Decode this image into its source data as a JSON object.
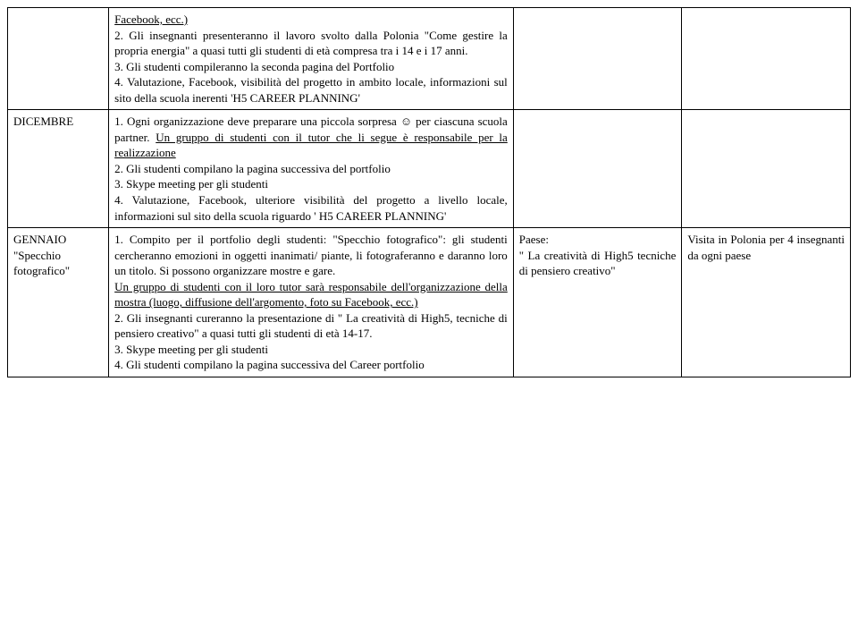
{
  "rows": [
    {
      "col1": "",
      "col2_html": "<p class='just'><span class='u'>Facebook, ecc.)</span></p><p class='just'>2. Gli insegnanti presenteranno il lavoro svolto dalla Polonia \"Come gestire la propria energia\" a quasi tutti gli studenti di età compresa tra i 14 e i 17 anni.</p><p class='just'>3. Gli studenti compileranno la seconda pagina del Portfolio</p><p class='just'>4. Valutazione, Facebook, visibilità del progetto in ambito locale, informazioni sul sito della scuola inerenti 'H5 CAREER PLANNING'</p>",
      "col3": "",
      "col4": ""
    },
    {
      "col1": "DICEMBRE",
      "col2_html": "<p class='just'>1. Ogni organizzazione deve preparare una piccola sorpresa ☺ per ciascuna scuola partner. <span class='u'>Un gruppo di studenti con il tutor che li segue è responsabile per la realizzazione</span></p><p class='just'>2. Gli studenti compilano la pagina successiva del portfolio</p><p class='just'>3. Skype meeting per gli studenti</p><p class='just'>4. Valutazione, Facebook, ulteriore visibilità del progetto a livello locale, informazioni sul sito della scuola riguardo ' H5 CAREER PLANNING'</p>",
      "col3": "",
      "col4": ""
    },
    {
      "col1": "GENNAIO<br>\"Specchio fotografico\"",
      "col2_html": "<p class='just'>1. Compito per il portfolio degli studenti: \"Specchio fotografico\": gli studenti cercheranno emozioni in oggetti inanimati/ piante, li fotograferanno e daranno loro un titolo. Si possono organizzare mostre e gare.</p><p class='just'><span class='u'>Un gruppo di studenti con il loro tutor sarà responsabile dell'organizzazione della mostra (luogo, diffusione dell'argomento, foto su Facebook, ecc.)</span></p><p class='just'>2. Gli insegnanti cureranno la presentazione di \" La creatività di High5, tecniche di pensiero creativo\" a quasi tutti gli studenti di età 14-17.</p><p class='just'>3. Skype meeting per gli studenti</p><p class='just'>4. Gli studenti compilano la pagina successiva del Career portfolio</p>",
      "col3_html": "<p class='just'>Paese:</p><p class='just'>\" La creatività di High5 tecniche di pensiero creativo\"</p>",
      "col4_html": "<p class='just'>Visita in Polonia per 4 insegnanti da ogni paese</p>"
    }
  ]
}
